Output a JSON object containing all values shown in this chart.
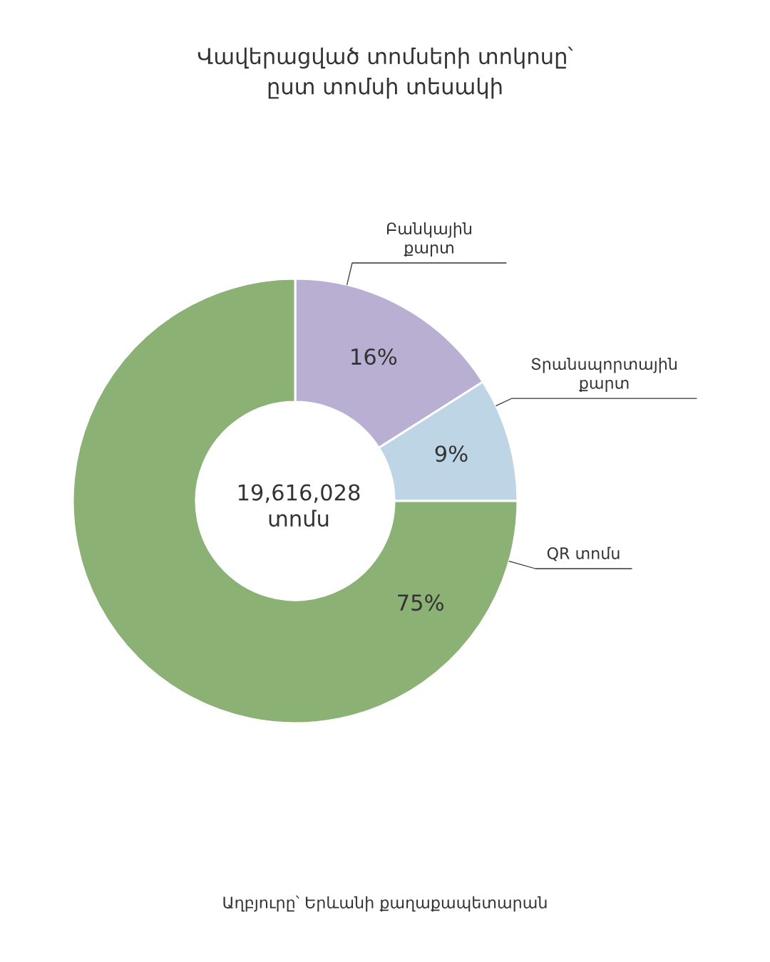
{
  "chart_data": {
    "type": "donut",
    "title": "Վավերացված տոմսերի տոկոսը՝\nըստ տոմսի տեսակի",
    "categories": [
      "Բանկային\nքարտ",
      "Տրանսպորտային\nքարտ",
      "QR տոմս"
    ],
    "values": [
      16,
      9,
      75
    ],
    "value_labels": [
      "16%",
      "9%",
      "75%"
    ],
    "colors": [
      "#b8afd3",
      "#bed5e5",
      "#8bb174"
    ],
    "annotations": [
      "19,616,028\nտոմս",
      "Աղբյուրը՝ Երևանի քաղաքապետարան"
    ]
  }
}
